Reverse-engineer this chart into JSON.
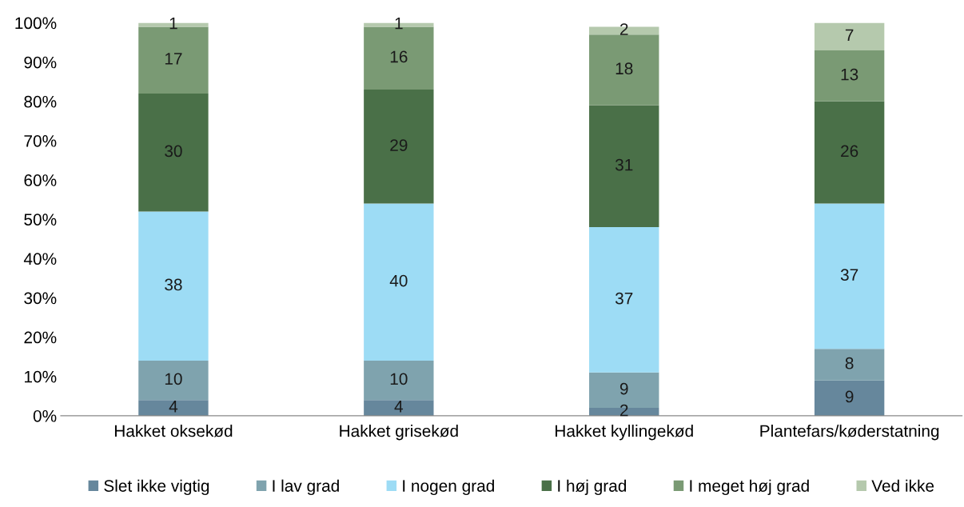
{
  "chart_data": {
    "type": "bar",
    "stacked": true,
    "categories": [
      "Hakket oksekød",
      "Hakket grisekød",
      "Hakket kyllingekød",
      "Plantefars/køderstatning"
    ],
    "series": [
      {
        "name": "Slet ikke vigtig",
        "color": "#66879c",
        "values": [
          4,
          4,
          2,
          9
        ]
      },
      {
        "name": "I lav grad",
        "color": "#7fa3ae",
        "values": [
          10,
          10,
          9,
          8
        ]
      },
      {
        "name": "I nogen grad",
        "color": "#9ddcf5",
        "values": [
          38,
          40,
          37,
          37
        ]
      },
      {
        "name": "I høj grad",
        "color": "#4a7048",
        "values": [
          30,
          29,
          31,
          26
        ]
      },
      {
        "name": "I meget høj grad",
        "color": "#7a9a74",
        "values": [
          17,
          16,
          18,
          13
        ]
      },
      {
        "name": "Ved ikke",
        "color": "#b5c9ad",
        "values": [
          1,
          1,
          2,
          7
        ]
      }
    ],
    "ylim": [
      0,
      100
    ],
    "yticks": [
      {
        "value": 0,
        "label": "0%"
      },
      {
        "value": 10,
        "label": "10%"
      },
      {
        "value": 20,
        "label": "20%"
      },
      {
        "value": 30,
        "label": "30%"
      },
      {
        "value": 40,
        "label": "40%"
      },
      {
        "value": 50,
        "label": "50%"
      },
      {
        "value": 60,
        "label": "60%"
      },
      {
        "value": 70,
        "label": "70%"
      },
      {
        "value": 80,
        "label": "80%"
      },
      {
        "value": 90,
        "label": "90%"
      },
      {
        "value": 100,
        "label": "100%"
      }
    ],
    "data_labels": true,
    "legend": "bottom",
    "grid": false
  }
}
